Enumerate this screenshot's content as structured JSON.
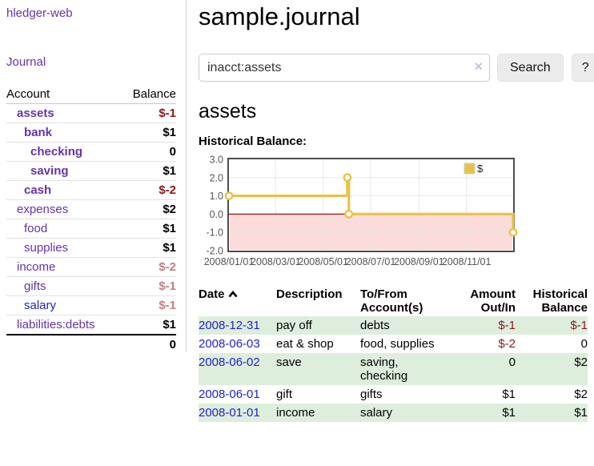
{
  "app": {
    "title": "hledger-web"
  },
  "sidebar": {
    "nav_journal": "Journal",
    "col_account": "Account",
    "col_balance": "Balance",
    "rows": [
      {
        "label": "assets",
        "balance": "$-1",
        "indent": 1,
        "bold": true,
        "balance_class": "neg",
        "link": "purple"
      },
      {
        "label": "bank",
        "balance": "$1",
        "indent": 2,
        "bold": true,
        "balance_class": "pos",
        "link": "purple"
      },
      {
        "label": "checking",
        "balance": "0",
        "indent": 3,
        "bold": true,
        "balance_class": "pos",
        "link": "purple"
      },
      {
        "label": "saving",
        "balance": "$1",
        "indent": 3,
        "bold": true,
        "balance_class": "pos",
        "link": "purple"
      },
      {
        "label": "cash",
        "balance": "$-2",
        "indent": 2,
        "bold": true,
        "balance_class": "neg",
        "link": "purple"
      },
      {
        "label": "expenses",
        "balance": "$2",
        "indent": 1,
        "bold": false,
        "balance_class": "pos",
        "link": "purple"
      },
      {
        "label": "food",
        "balance": "$1",
        "indent": 2,
        "bold": false,
        "balance_class": "pos",
        "link": "purple"
      },
      {
        "label": "supplies",
        "balance": "$1",
        "indent": 2,
        "bold": false,
        "balance_class": "pos",
        "link": "purple"
      },
      {
        "label": "income",
        "balance": "$-2",
        "indent": 1,
        "bold": false,
        "balance_class": "negmuted",
        "link": "purple"
      },
      {
        "label": "gifts",
        "balance": "$-1",
        "indent": 2,
        "bold": false,
        "balance_class": "negmuted",
        "link": "purple"
      },
      {
        "label": "salary",
        "balance": "$-1",
        "indent": 2,
        "bold": false,
        "balance_class": "negmuted",
        "link": "blue"
      },
      {
        "label": "liabilities:debts",
        "balance": "$1",
        "indent": 1,
        "bold": false,
        "balance_class": "pos",
        "link": "purple"
      }
    ],
    "total": "0"
  },
  "main": {
    "title": "sample.journal",
    "search": {
      "value": "inacct:assets",
      "clear_icon": "×",
      "button": "Search",
      "help": "?"
    },
    "heading": "assets",
    "chart_label": "Historical Balance:"
  },
  "chart_data": {
    "type": "line",
    "style": "step",
    "title": "Historical Balance",
    "x_start": "2008-01-01",
    "x_end": "2008-12-31",
    "x_ticks": [
      "2008/01/01",
      "2008/03/01",
      "2008/05/01",
      "2008/07/01",
      "2008/09/01",
      "2008/11/01"
    ],
    "y_ticks": [
      3.0,
      2.0,
      1.0,
      0.0,
      -1.0,
      -2.0
    ],
    "ylim": [
      -2,
      3
    ],
    "grid": true,
    "legend_position": "top-right",
    "series": [
      {
        "name": "$",
        "color": "#e9c348",
        "points": [
          {
            "date": "2008-01-01",
            "value": 1
          },
          {
            "date": "2008-06-01",
            "value": 2
          },
          {
            "date": "2008-06-03",
            "value": 0
          },
          {
            "date": "2008-12-31",
            "value": -1
          }
        ]
      }
    ],
    "negative_region_color": "#fcdbdb",
    "zero_line_color": "#991f1f",
    "grid_color": "#e7e7e7",
    "border_color": "#4d4d4d",
    "axis_text_color": "#545454"
  },
  "register": {
    "headers": {
      "date": "Date",
      "description": "Description",
      "accounts": "To/From Account(s)",
      "amount": "Amount Out/In",
      "balance": "Historical Balance"
    },
    "rows": [
      {
        "date": "2008-12-31",
        "description": "pay off",
        "accounts": "debts",
        "amount": "$-1",
        "amount_neg": true,
        "balance": "$-1",
        "balance_neg": true
      },
      {
        "date": "2008-06-03",
        "description": "eat & shop",
        "accounts": "food, supplies",
        "amount": "$-2",
        "amount_neg": true,
        "balance": "0",
        "balance_neg": false
      },
      {
        "date": "2008-06-02",
        "description": "save",
        "accounts": "saving, checking",
        "amount": "0",
        "amount_neg": false,
        "balance": "$2",
        "balance_neg": false
      },
      {
        "date": "2008-06-01",
        "description": "gift",
        "accounts": "gifts",
        "amount": "$1",
        "amount_neg": false,
        "balance": "$2",
        "balance_neg": false
      },
      {
        "date": "2008-01-01",
        "description": "income",
        "accounts": "salary",
        "amount": "$1",
        "amount_neg": false,
        "balance": "$1",
        "balance_neg": false
      }
    ]
  }
}
